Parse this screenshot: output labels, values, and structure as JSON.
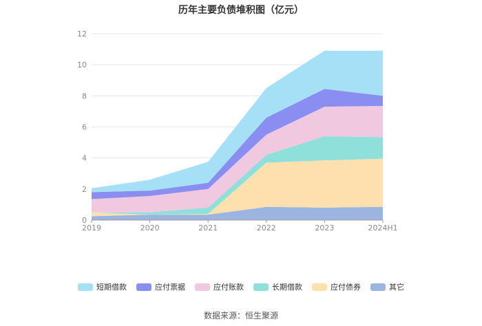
{
  "title": "历年主要负债堆积图（亿元）",
  "source": "数据来源：恒生聚源",
  "colors": {
    "短期借款": "#a6e0f7",
    "应付票据": "#8a8ef0",
    "应付账款": "#f0c8df",
    "长期借款": "#8fdfdb",
    "应付债券": "#fde0ad",
    "其它": "#9bb5e0"
  },
  "legend": [
    "短期借款",
    "应付票据",
    "应付账款",
    "长期借款",
    "应付债券",
    "其它"
  ],
  "chart_data": {
    "type": "area",
    "stacked": true,
    "categories": [
      "2019",
      "2020",
      "2021",
      "2022",
      "2023",
      "2024H1"
    ],
    "series": [
      {
        "name": "其它",
        "values": [
          0.25,
          0.35,
          0.35,
          0.85,
          0.8,
          0.85
        ]
      },
      {
        "name": "应付债券",
        "values": [
          0.25,
          0.0,
          0.05,
          2.85,
          3.05,
          3.1
        ]
      },
      {
        "name": "长期借款",
        "values": [
          0.0,
          0.15,
          0.4,
          0.5,
          1.55,
          1.4
        ]
      },
      {
        "name": "应付账款",
        "values": [
          0.85,
          1.05,
          1.2,
          1.3,
          1.9,
          2.0
        ]
      },
      {
        "name": "应付票据",
        "values": [
          0.45,
          0.35,
          0.4,
          1.1,
          1.15,
          0.65
        ]
      },
      {
        "name": "短期借款",
        "values": [
          0.25,
          0.7,
          1.35,
          1.9,
          2.45,
          2.9
        ]
      }
    ],
    "yticks": [
      0,
      2,
      4,
      6,
      8,
      10,
      12
    ],
    "ylim": [
      0,
      12
    ],
    "grid": true,
    "legend_position": "bottom"
  }
}
